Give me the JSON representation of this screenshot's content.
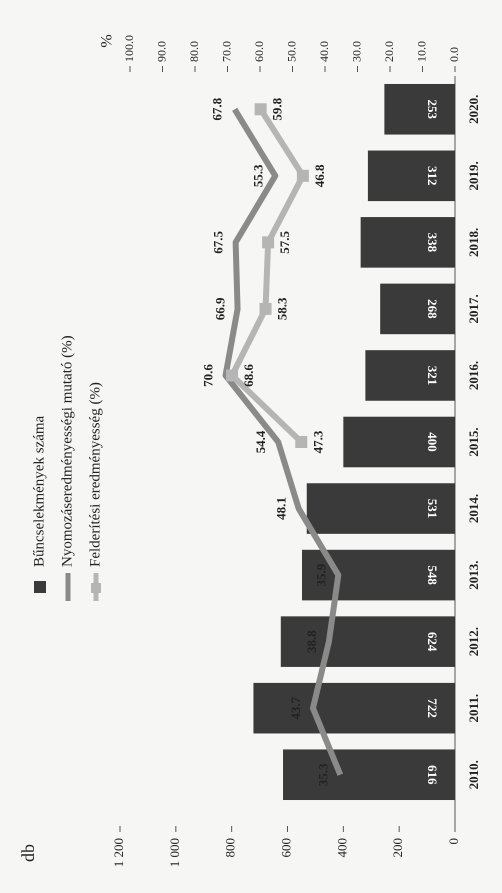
{
  "chart_data": {
    "type": "combo",
    "y_label": "db",
    "y2_label": "%",
    "categories": [
      "2010.",
      "2011.",
      "2012.",
      "2013.",
      "2014.",
      "2015.",
      "2016.",
      "2017.",
      "2018.",
      "2019.",
      "2020."
    ],
    "series": [
      {
        "name": "Bűncselekmények száma",
        "type": "bar",
        "color": "#3a3a3a",
        "values": [
          616,
          722,
          624,
          548,
          531,
          400,
          321,
          268,
          338,
          312,
          253
        ]
      },
      {
        "name": "Nyomozáseredményességi mutató (%)",
        "type": "line",
        "axis": "y2",
        "color": "#8a8a8a",
        "values": [
          35.3,
          43.7,
          38.8,
          35.9,
          48.1,
          54.4,
          70.6,
          66.9,
          67.5,
          55.3,
          67.8
        ]
      },
      {
        "name": "Felderítési eredményesség (%)",
        "type": "line",
        "axis": "y2",
        "color": "#b5b5b5",
        "marker": "square",
        "values": [
          null,
          null,
          null,
          null,
          null,
          47.3,
          68.6,
          58.3,
          57.5,
          46.8,
          59.8
        ]
      }
    ],
    "ylim": [
      0,
      1200
    ],
    "yticks": [
      0,
      200,
      400,
      600,
      800,
      {
        "value": 1000,
        "label": "1 000"
      },
      {
        "value": 1200,
        "label": "1 200"
      }
    ],
    "y2lim": [
      0,
      100
    ],
    "y2ticks": [
      {
        "value": 0,
        "label": "0.0"
      },
      {
        "value": 10,
        "label": "10.0"
      },
      {
        "value": 20,
        "label": "20.0"
      },
      {
        "value": 30,
        "label": "30.0"
      },
      {
        "value": 40,
        "label": "40.0"
      },
      {
        "value": 50,
        "label": "50.0"
      },
      {
        "value": 60,
        "label": "60.0"
      },
      {
        "value": 70,
        "label": "70.0"
      },
      {
        "value": 80,
        "label": "80.0"
      },
      {
        "value": 90,
        "label": "90.0"
      },
      {
        "value": 100,
        "label": "100.0"
      }
    ],
    "legend": "top"
  }
}
